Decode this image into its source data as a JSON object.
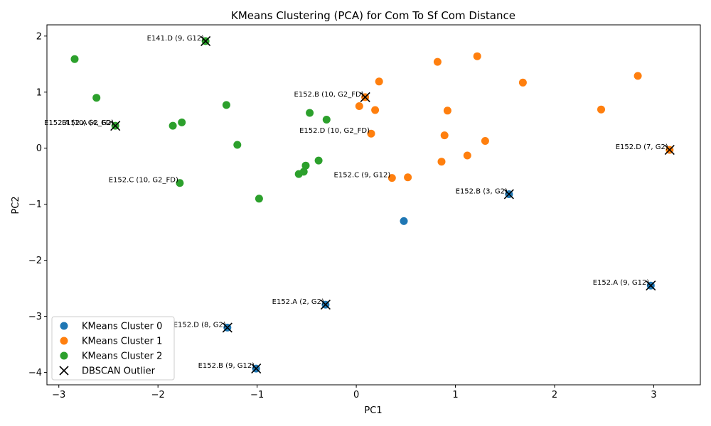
{
  "chart_data": {
    "type": "scatter",
    "title": "KMeans Clustering (PCA) for Com To Sf Com Distance",
    "xlabel": "PC1",
    "ylabel": "PC2",
    "xlim": [
      -3.12,
      3.47
    ],
    "ylim": [
      -4.22,
      2.2
    ],
    "xticks": [
      -3,
      -2,
      -1,
      0,
      1,
      2,
      3
    ],
    "yticks": [
      -4,
      -3,
      -2,
      -1,
      0,
      1,
      2
    ],
    "xtick_labels": [
      "−3",
      "−2",
      "−1",
      "0",
      "1",
      "2",
      "3"
    ],
    "ytick_labels": [
      "−4",
      "−3",
      "−2",
      "−1",
      "0",
      "1",
      "2"
    ],
    "grid": false,
    "legend_position": "lower-left",
    "series": [
      {
        "name": "KMeans Cluster 0",
        "color": "#1f77b4",
        "points": [
          [
            0.48,
            -1.3
          ],
          [
            1.54,
            -0.82
          ],
          [
            2.97,
            -2.45
          ],
          [
            -0.31,
            -2.79
          ],
          [
            -1.3,
            -3.2
          ],
          [
            -1.01,
            -3.93
          ]
        ]
      },
      {
        "name": "KMeans Cluster 1",
        "color": "#ff7f0e",
        "points": [
          [
            1.22,
            1.64
          ],
          [
            0.82,
            1.54
          ],
          [
            2.84,
            1.29
          ],
          [
            1.68,
            1.17
          ],
          [
            0.23,
            1.19
          ],
          [
            0.09,
            0.91
          ],
          [
            0.03,
            0.75
          ],
          [
            0.19,
            0.68
          ],
          [
            0.92,
            0.67
          ],
          [
            2.47,
            0.69
          ],
          [
            0.15,
            0.26
          ],
          [
            0.89,
            0.23
          ],
          [
            1.3,
            0.13
          ],
          [
            1.12,
            -0.13
          ],
          [
            0.86,
            -0.24
          ],
          [
            0.36,
            -0.53
          ],
          [
            0.52,
            -0.52
          ],
          [
            3.16,
            -0.03
          ]
        ]
      },
      {
        "name": "KMeans Cluster 2",
        "color": "#2ca02c",
        "points": [
          [
            -2.84,
            1.59
          ],
          [
            -1.52,
            1.91
          ],
          [
            -2.62,
            0.9
          ],
          [
            -1.31,
            0.77
          ],
          [
            -2.43,
            0.4
          ],
          [
            -1.85,
            0.4
          ],
          [
            -1.76,
            0.46
          ],
          [
            -0.47,
            0.63
          ],
          [
            -0.3,
            0.51
          ],
          [
            -1.2,
            0.06
          ],
          [
            -0.38,
            -0.22
          ],
          [
            -0.51,
            -0.31
          ],
          [
            -0.53,
            -0.42
          ],
          [
            -0.58,
            -0.46
          ],
          [
            -1.78,
            -0.62
          ],
          [
            -0.98,
            -0.9
          ]
        ]
      }
    ],
    "outliers": {
      "name": "DBSCAN Outlier",
      "color": "#000000",
      "points": [
        [
          -1.52,
          1.91
        ],
        [
          0.09,
          0.91
        ],
        [
          -2.43,
          0.4
        ],
        [
          3.16,
          -0.03
        ],
        [
          1.54,
          -0.82
        ],
        [
          2.97,
          -2.45
        ],
        [
          -0.31,
          -2.79
        ],
        [
          -1.3,
          -3.2
        ],
        [
          -1.01,
          -3.93
        ]
      ]
    },
    "annotations": [
      {
        "text": "E141.D (9, G12)",
        "x": -1.52,
        "y": 1.91
      },
      {
        "text": "E152.B (10, G2_FD)",
        "x": 0.09,
        "y": 0.91
      },
      {
        "text": "E152.A (4, G2)",
        "x": -2.43,
        "y": 0.4
      },
      {
        "text": "E152.A (10, G2_FD)",
        "x": -2.43,
        "y": 0.4
      },
      {
        "text": "E152.D (10, G2_FD)",
        "x": 0.15,
        "y": 0.26
      },
      {
        "text": "E152.D (7, G2)",
        "x": 3.16,
        "y": -0.03
      },
      {
        "text": "E152.C (10, G2_FD)",
        "x": -1.78,
        "y": -0.62
      },
      {
        "text": "E152.C (9, G12)",
        "x": 0.36,
        "y": -0.53
      },
      {
        "text": "E152.B (3, G2)",
        "x": 1.54,
        "y": -0.82
      },
      {
        "text": "E152.A (9, G12)",
        "x": 2.97,
        "y": -2.45
      },
      {
        "text": "E152.A (2, G2)",
        "x": -0.31,
        "y": -2.79
      },
      {
        "text": "E152.D (8, G2)",
        "x": -1.3,
        "y": -3.2
      },
      {
        "text": "E152.B (9, G12)",
        "x": -1.01,
        "y": -3.93
      }
    ]
  }
}
